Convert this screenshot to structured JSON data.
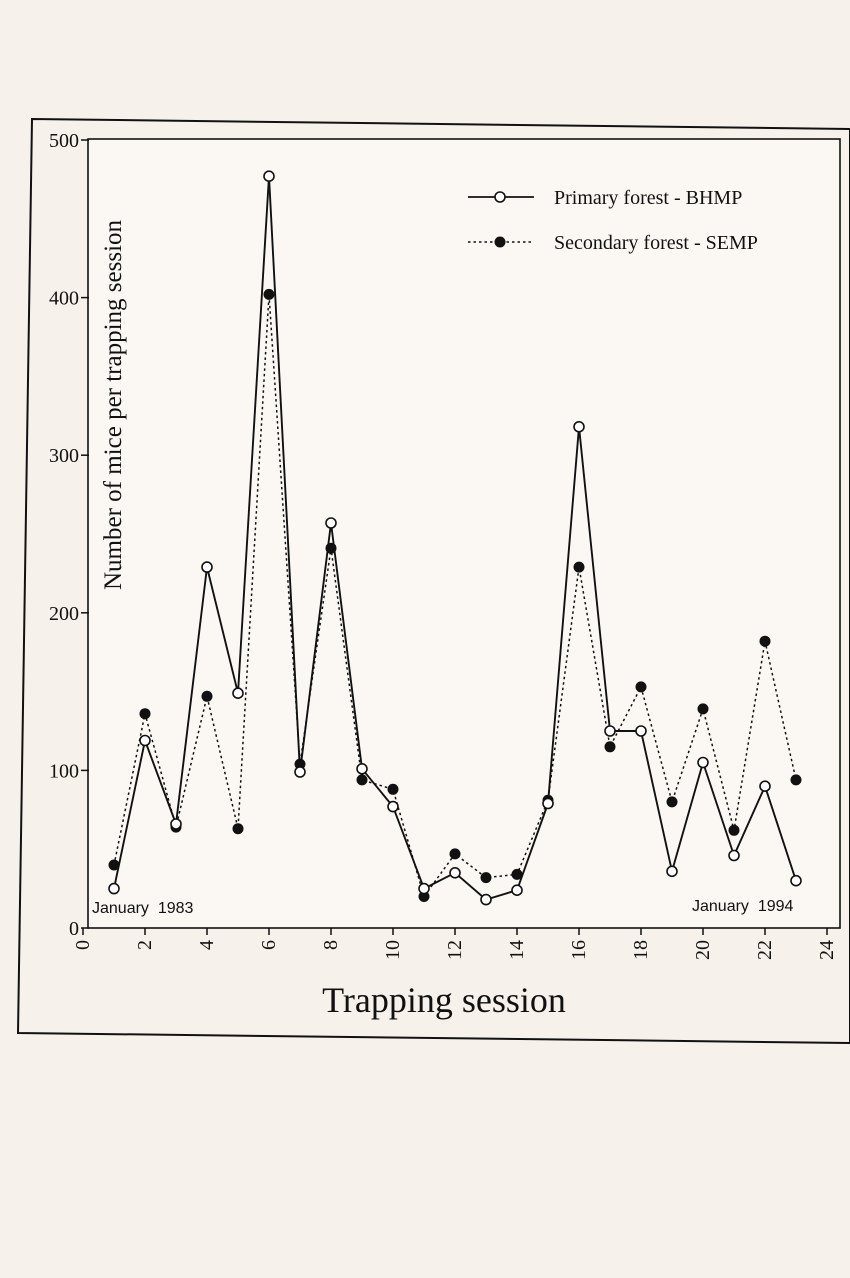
{
  "chart_data": {
    "type": "line",
    "title": "",
    "xlabel": "Trapping session",
    "ylabel": "Number of mice per trapping session",
    "xlim": [
      0,
      24
    ],
    "ylim": [
      0,
      500
    ],
    "x_ticks": [
      0,
      2,
      4,
      6,
      8,
      10,
      12,
      14,
      16,
      18,
      20,
      22,
      24
    ],
    "y_ticks": [
      0,
      100,
      200,
      300,
      400,
      500
    ],
    "grid": false,
    "legend_position": "top-right",
    "annotations": {
      "start": "January  1983",
      "end": "January  1994"
    },
    "series": [
      {
        "name": "Primary forest - BHMP",
        "marker": "open-circle",
        "line_style": "solid",
        "color": "#111111",
        "x": [
          1,
          2,
          3,
          4,
          5,
          6,
          7,
          8,
          9,
          10,
          11,
          12,
          13,
          14,
          15,
          16,
          17,
          18,
          19,
          20,
          21,
          22,
          23
        ],
        "values": [
          25,
          119,
          66,
          229,
          149,
          477,
          99,
          257,
          101,
          77,
          25,
          35,
          18,
          24,
          79,
          318,
          125,
          125,
          36,
          105,
          46,
          90,
          30
        ]
      },
      {
        "name": "Secondary forest - SEMP",
        "marker": "filled-circle",
        "line_style": "dotted",
        "color": "#111111",
        "x": [
          1,
          2,
          3,
          4,
          5,
          6,
          7,
          8,
          9,
          10,
          11,
          12,
          13,
          14,
          15,
          16,
          17,
          18,
          19,
          20,
          21,
          22,
          23
        ],
        "values": [
          40,
          136,
          64,
          147,
          63,
          402,
          104,
          241,
          94,
          88,
          20,
          47,
          32,
          34,
          81,
          229,
          115,
          153,
          80,
          139,
          62,
          182,
          94
        ]
      }
    ]
  }
}
